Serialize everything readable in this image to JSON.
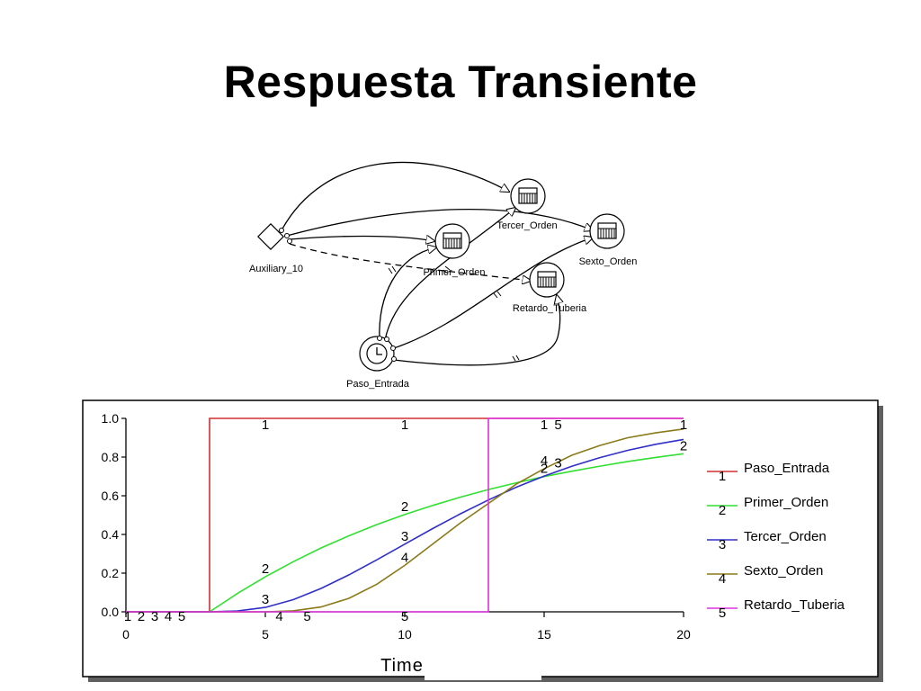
{
  "slide": {
    "title": "Respuesta Transiente"
  },
  "diagram": {
    "nodes": {
      "auxiliary": "Auxiliary_10",
      "primer": "Primer_Orden",
      "tercer": "Tercer_Orden",
      "sexto": "Sexto_Orden",
      "retardo": "Retardo_Tuberia",
      "paso": "Paso_Entrada"
    }
  },
  "chart_data": {
    "type": "line",
    "xlabel": "Time",
    "ylabel": "",
    "xlim": [
      0,
      20
    ],
    "ylim": [
      0,
      1
    ],
    "xticks": [
      "0",
      "5",
      "10",
      "15",
      "20"
    ],
    "yticks": [
      "0.0",
      "0.2",
      "0.4",
      "0.6",
      "0.8",
      "1.0"
    ],
    "grid": false,
    "legend_position": "right",
    "series": [
      {
        "name": "Paso_Entrada",
        "marker": "1",
        "color": "#d03030",
        "x": [
          0,
          3,
          3,
          20
        ],
        "y": [
          0,
          0,
          1,
          1
        ]
      },
      {
        "name": "Primer_Orden",
        "marker": "2",
        "color": "#30e030",
        "x": [
          0,
          3,
          4,
          5,
          6,
          7,
          8,
          9,
          10,
          11,
          12,
          13,
          14,
          15,
          16,
          17,
          18,
          19,
          20
        ],
        "y": [
          0,
          0,
          0.095,
          0.181,
          0.259,
          0.33,
          0.393,
          0.451,
          0.503,
          0.55,
          0.593,
          0.632,
          0.667,
          0.699,
          0.727,
          0.753,
          0.777,
          0.798,
          0.817
        ]
      },
      {
        "name": "Tercer_Orden",
        "marker": "3",
        "color": "#3030c8",
        "x": [
          0,
          3,
          4,
          5,
          6,
          7,
          8,
          9,
          10,
          11,
          12,
          13,
          14,
          15,
          16,
          17,
          18,
          19,
          20
        ],
        "y": [
          0,
          0,
          0.004,
          0.023,
          0.063,
          0.121,
          0.191,
          0.269,
          0.35,
          0.43,
          0.507,
          0.578,
          0.644,
          0.702,
          0.753,
          0.797,
          0.835,
          0.866,
          0.891
        ]
      },
      {
        "name": "Sexto_Orden",
        "marker": "4",
        "color": "#8a7a18",
        "x": [
          0,
          3,
          4,
          5,
          6,
          7,
          8,
          9,
          10,
          11,
          12,
          13,
          14,
          15,
          16,
          17,
          18,
          19,
          20
        ],
        "y": [
          0,
          0,
          0,
          0,
          0.005,
          0.025,
          0.07,
          0.143,
          0.24,
          0.35,
          0.46,
          0.56,
          0.66,
          0.74,
          0.81,
          0.86,
          0.9,
          0.925,
          0.945
        ]
      },
      {
        "name": "Retardo_Tuberia",
        "marker": "5",
        "color": "#e030e0",
        "x": [
          0,
          13,
          13,
          20
        ],
        "y": [
          0,
          0,
          1,
          1
        ]
      }
    ]
  }
}
